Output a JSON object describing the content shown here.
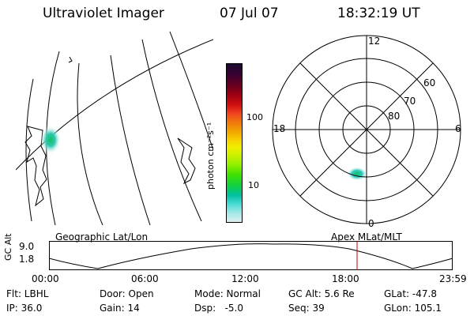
{
  "header": {
    "title": "Ultraviolet Imager",
    "date": "07 Jul 07",
    "time": "18:32:19 UT"
  },
  "map_panel": {
    "caption": "Geographic Lat/Lon"
  },
  "colorbar": {
    "unit_label": "photon cm⁻²s⁻¹",
    "ticks": [
      "100",
      "10"
    ],
    "colors": [
      "#1a0a2e",
      "#3a0030",
      "#6a0020",
      "#a00010",
      "#d01010",
      "#f04020",
      "#f07010",
      "#f0a000",
      "#f8d000",
      "#f0f000",
      "#c8f000",
      "#90f000",
      "#40e000",
      "#10d040",
      "#00c0a0",
      "#40d8d0",
      "#a0e8e8",
      "#e0f0f0"
    ]
  },
  "polar_plot": {
    "mlt_labels": {
      "top": "12",
      "left": "18",
      "right": "6",
      "bottom": "0"
    },
    "lat_labels": [
      "60",
      "70",
      "80"
    ],
    "caption": "Apex MLat/MLT"
  },
  "altitude_strip": {
    "axis_title": "GC Alt",
    "y_max": "9.0",
    "y_min": "1.8",
    "time_ticks": [
      "00:00",
      "06:00",
      "12:00",
      "18:00",
      "23:59"
    ],
    "current_time_color": "#c00000"
  },
  "info": {
    "flt": "Flt: LBHL",
    "ip": "IP: 36.0",
    "door": "Door: Open",
    "gain": "Gain: 14",
    "mode": "Mode: Normal",
    "dsp": "Dsp:   -5.0",
    "gc_alt": "GC Alt: 5.6 Re",
    "seq": "Seq: 39",
    "glat": "GLat: -47.8",
    "glon": "GLon: 105.1"
  }
}
